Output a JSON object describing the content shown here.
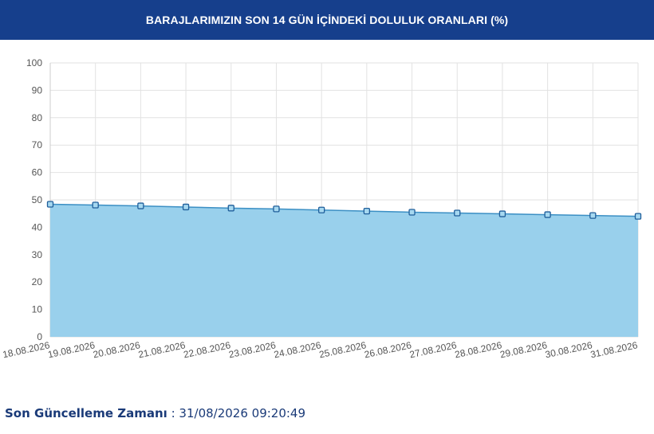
{
  "header": {
    "title": "BARAJLARIMIZIN SON 14 GÜN İÇİNDEKİ DOLULUK ORANLARI (%)"
  },
  "chart_data": {
    "type": "area",
    "title": "BARAJLARIMIZIN SON 14 GÜN İÇİNDEKİ DOLULUK ORANLARI (%)",
    "xlabel": "",
    "ylabel": "",
    "ylim": [
      0,
      100
    ],
    "yticks": [
      "0",
      "10",
      "20",
      "30",
      "40",
      "50",
      "60",
      "70",
      "80",
      "90",
      "100"
    ],
    "grid": true,
    "legend": "none",
    "categories": [
      "18.08.2026",
      "19.08.2026",
      "20.08.2026",
      "21.08.2026",
      "22.08.2026",
      "23.08.2026",
      "24.08.2026",
      "25.08.2026",
      "26.08.2026",
      "27.08.2026",
      "28.08.2026",
      "29.08.2026",
      "30.08.2026",
      "31.08.2026"
    ],
    "series": [
      {
        "values": [
          48.4,
          48.1,
          47.8,
          47.4,
          47.0,
          46.7,
          46.3,
          45.9,
          45.5,
          45.2,
          44.9,
          44.6,
          44.3,
          44.0
        ]
      }
    ],
    "colors": {
      "fill": "#99d0ec",
      "line": "#3b8fc4",
      "marker_fill": "#a6d8f0",
      "marker_stroke": "#1f5e9a",
      "grid": "#e2e2e2"
    }
  },
  "footer": {
    "label": "Son Güncelleme Zamanı",
    "separator": ":",
    "value": "31/08/2026 09:20:49"
  }
}
